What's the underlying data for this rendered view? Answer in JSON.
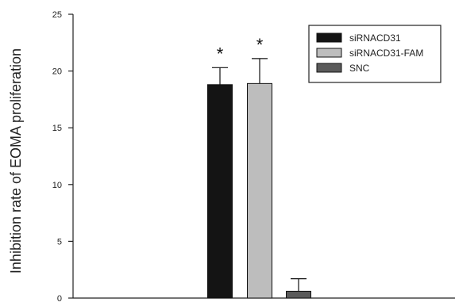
{
  "chart_data": {
    "type": "bar",
    "title": "",
    "xlabel": "",
    "ylabel": "Inhibition rate of EOMA proliferation",
    "ylim": [
      0,
      25
    ],
    "yticks": [
      "0",
      "5",
      "10",
      "15",
      "20",
      "25"
    ],
    "grid": false,
    "legend_position": "top-right",
    "series": [
      {
        "name": "siRNACD31",
        "value": 18.8,
        "error": 1.5,
        "color": "#141414",
        "significance": "*"
      },
      {
        "name": "siRNACD31-FAM",
        "value": 18.9,
        "error": 2.2,
        "color": "#bdbdbd",
        "significance": "*"
      },
      {
        "name": "SNC",
        "value": 0.6,
        "error": 1.1,
        "color": "#5a5a5a",
        "significance": ""
      }
    ]
  }
}
